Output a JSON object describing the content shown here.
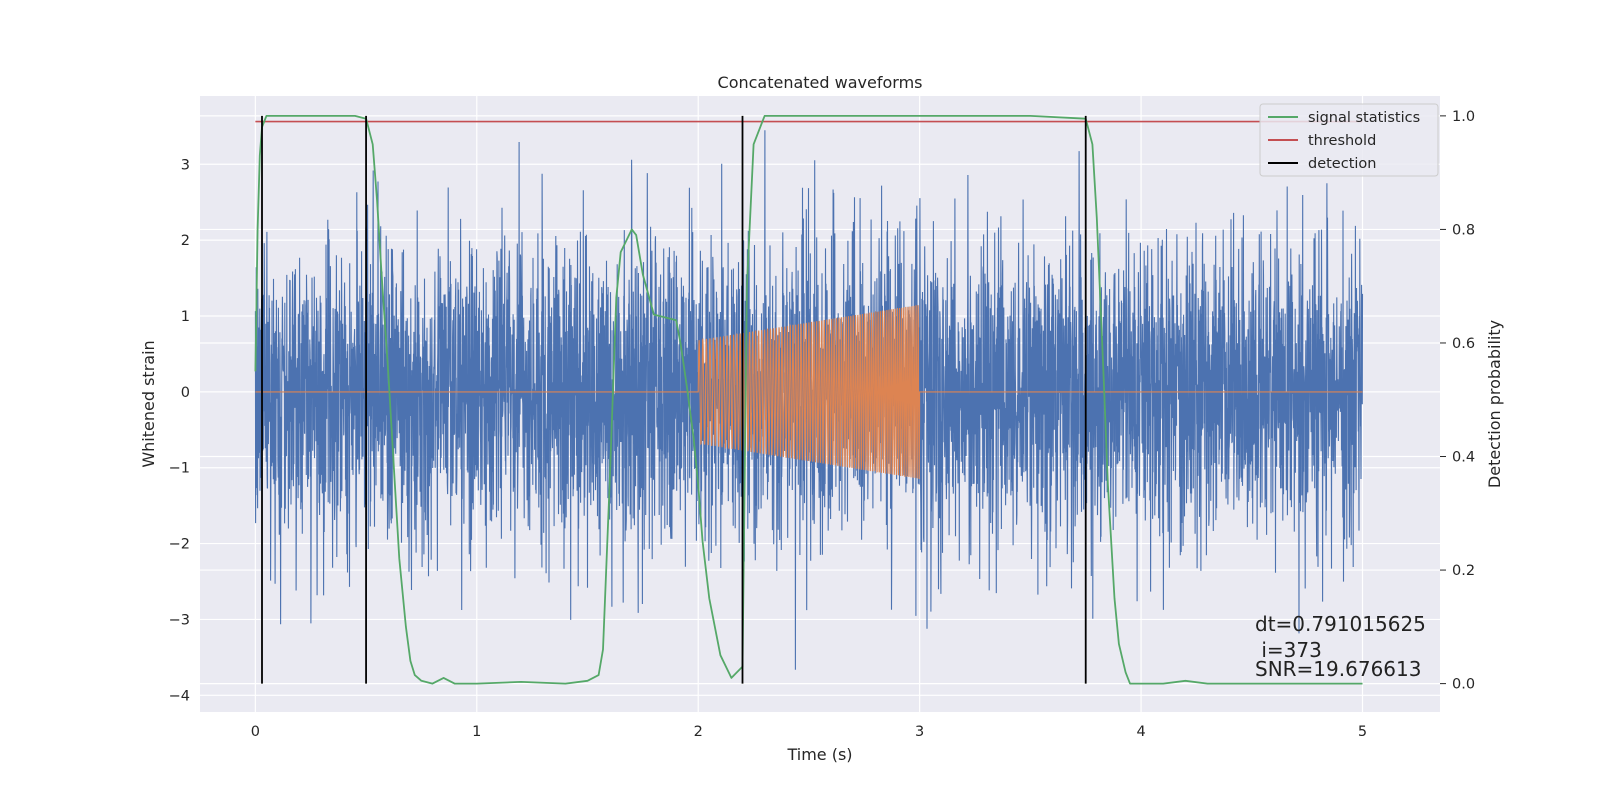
{
  "chart_data": {
    "type": "line",
    "title": "Concatenated waveforms",
    "xlabel": "Time (s)",
    "ylabel": "Whitened strain",
    "y2label": "Detection probability",
    "xlim": [
      -0.25,
      5.35
    ],
    "ylim": [
      -4.22,
      3.9
    ],
    "y2lim": [
      -0.05,
      1.035
    ],
    "xticks": [
      "0",
      "1",
      "2",
      "3",
      "4",
      "5"
    ],
    "xtick_values": [
      0,
      1,
      2,
      3,
      4,
      5
    ],
    "yticks": [
      "−4",
      "−3",
      "−2",
      "−1",
      "0",
      "1",
      "2",
      "3"
    ],
    "ytick_values": [
      -4,
      -3,
      -2,
      -1,
      0,
      1,
      2,
      3
    ],
    "y2ticks": [
      "0.0",
      "0.2",
      "0.4",
      "0.6",
      "0.8",
      "1.0"
    ],
    "y2tick_values": [
      0.0,
      0.2,
      0.4,
      0.6,
      0.8,
      1.0
    ],
    "grid": true,
    "legend_position": "top-right",
    "series": [
      {
        "name": "",
        "role": "whitened strain (noise)",
        "color": "#4c72b0",
        "x_range": [
          0,
          5
        ],
        "typical_amplitude": 1.0,
        "peak_amplitude": 3.55
      },
      {
        "name": "",
        "role": "injected chirp waveform",
        "color": "#dd8452",
        "x_range": [
          0,
          5
        ],
        "chirp_start": 2.0,
        "chirp_end": 3.0,
        "amplitude_start": 0.68,
        "amplitude_end": 1.15
      },
      {
        "name": "signal statistics",
        "axis": "right",
        "color": "#55a868",
        "x": [
          0,
          0.01,
          0.02,
          0.03,
          0.05,
          0.1,
          0.2,
          0.3,
          0.4,
          0.45,
          0.5,
          0.53,
          0.55,
          0.57,
          0.6,
          0.63,
          0.65,
          0.68,
          0.7,
          0.72,
          0.75,
          0.8,
          0.85,
          0.9,
          0.95,
          1.0,
          1.2,
          1.4,
          1.5,
          1.55,
          1.57,
          1.6,
          1.63,
          1.65,
          1.7,
          1.72,
          1.75,
          1.8,
          1.85,
          1.9,
          1.92,
          1.95,
          1.98,
          2.0,
          2.02,
          2.05,
          2.1,
          2.15,
          2.2,
          2.22,
          2.25,
          2.3,
          2.5,
          3.0,
          3.5,
          3.75,
          3.78,
          3.8,
          3.83,
          3.85,
          3.88,
          3.9,
          3.93,
          3.95,
          4.0,
          4.1,
          4.2,
          4.3,
          4.5,
          5.0
        ],
        "values": [
          0.55,
          0.8,
          0.93,
          0.98,
          1.0,
          1.0,
          1.0,
          1.0,
          1.0,
          1.0,
          0.995,
          0.95,
          0.85,
          0.72,
          0.55,
          0.35,
          0.22,
          0.1,
          0.04,
          0.015,
          0.005,
          0.0,
          0.01,
          0.0,
          0.0,
          0.0,
          0.003,
          0.0,
          0.005,
          0.015,
          0.06,
          0.35,
          0.68,
          0.76,
          0.8,
          0.79,
          0.72,
          0.65,
          0.645,
          0.64,
          0.6,
          0.52,
          0.43,
          0.35,
          0.25,
          0.15,
          0.05,
          0.01,
          0.03,
          0.7,
          0.95,
          1.0,
          1.0,
          1.0,
          1.0,
          0.995,
          0.95,
          0.82,
          0.55,
          0.35,
          0.15,
          0.07,
          0.02,
          0.0,
          0.0,
          0.0,
          0.005,
          0.0,
          0.0,
          0.0
        ]
      },
      {
        "name": "threshold",
        "axis": "right",
        "color": "#c44e52",
        "x": [
          0,
          5
        ],
        "values": [
          0.99,
          0.99
        ]
      },
      {
        "name": "detection",
        "axis": "right",
        "color": "#000000",
        "type": "vlines",
        "x": [
          0.03,
          0.5,
          2.2,
          3.75
        ],
        "from": 0.0,
        "to": 1.0
      }
    ],
    "annotations": [
      "dt=0.791015625",
      " i=373",
      "SNR=19.676613"
    ],
    "colors": {
      "background": "#eaeaf2",
      "grid": "#ffffff"
    }
  }
}
